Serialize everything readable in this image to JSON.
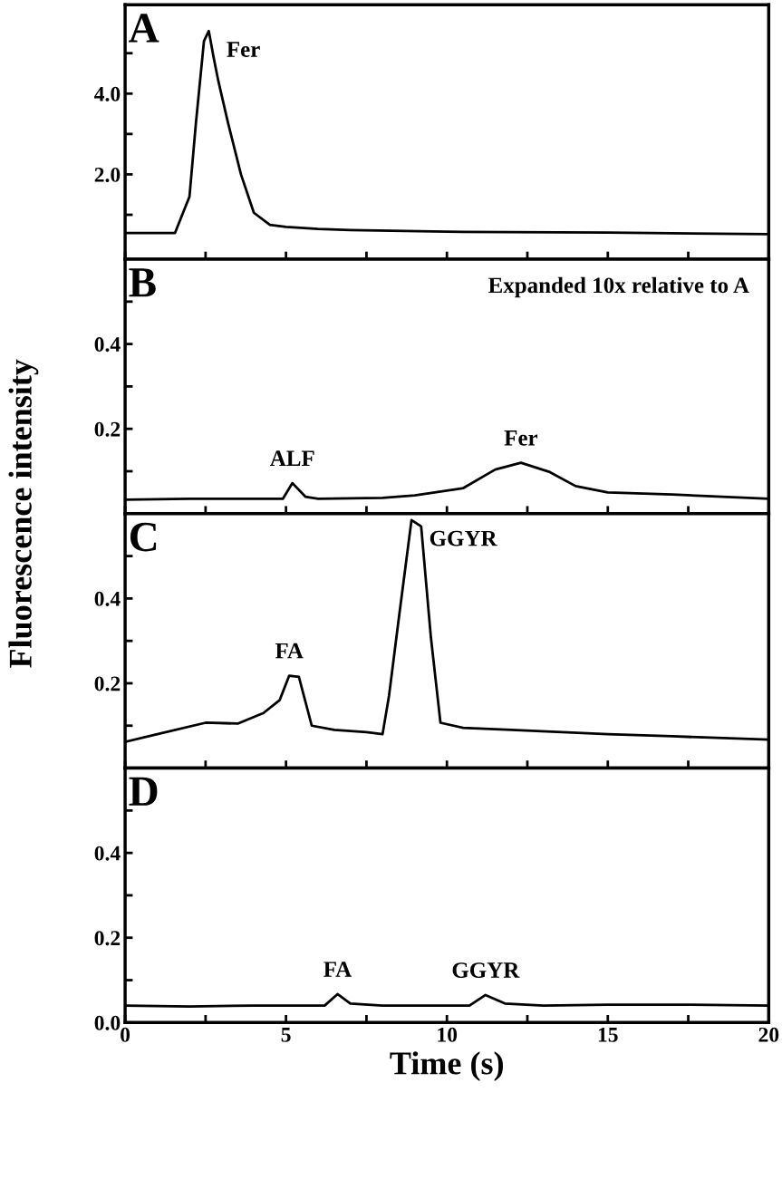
{
  "chart_data": [
    {
      "type": "line",
      "title": "A",
      "ylabel": "Fluorescence intensity",
      "tick_labels": "y",
      "xlim": [
        0,
        20
      ],
      "xticks": [
        {
          "value": 0,
          "label": null
        },
        {
          "value": 2.5,
          "label": null
        },
        {
          "value": 5,
          "label": null
        },
        {
          "value": 7.5,
          "label": null
        },
        {
          "value": 10,
          "label": null
        },
        {
          "value": 12.5,
          "label": null
        },
        {
          "value": 15,
          "label": null
        },
        {
          "value": 17.5,
          "label": null
        },
        {
          "value": 20,
          "label": null
        }
      ],
      "ylim": [
        -0.1,
        6.2
      ],
      "yticks": [
        {
          "value": 1,
          "label": null
        },
        {
          "value": 2,
          "label": "2.0"
        },
        {
          "value": 3,
          "label": null
        },
        {
          "value": 4,
          "label": "4.0"
        },
        {
          "value": 5,
          "label": null
        }
      ],
      "x": [
        0,
        1.55,
        1.8,
        2.0,
        2.2,
        2.45,
        2.6,
        2.75,
        2.9,
        3.2,
        3.6,
        4.0,
        4.5,
        5,
        6,
        7,
        10,
        15,
        20
      ],
      "series": [
        {
          "color": "#000000",
          "values": [
            0.55,
            0.55,
            1.05,
            1.45,
            3.27,
            5.3,
            5.55,
            4.9,
            4.3,
            3.27,
            2.0,
            1.05,
            0.75,
            0.7,
            0.65,
            0.62,
            0.58,
            0.56,
            0.52
          ]
        }
      ],
      "annotations": [
        {
          "text": "Fer",
          "x": 2.6,
          "y": 5.55
        }
      ]
    },
    {
      "type": "line",
      "title": "B",
      "tick_labels": "y",
      "xlim": [
        0,
        20
      ],
      "xticks": [
        {
          "value": 0,
          "label": null
        },
        {
          "value": 2.5,
          "label": null
        },
        {
          "value": 5,
          "label": null
        },
        {
          "value": 7.5,
          "label": null
        },
        {
          "value": 10,
          "label": null
        },
        {
          "value": 12.5,
          "label": null
        },
        {
          "value": 15,
          "label": null
        },
        {
          "value": 17.5,
          "label": null
        },
        {
          "value": 20,
          "label": null
        }
      ],
      "ylim": [
        0,
        0.6
      ],
      "x": [
        0,
        2,
        4,
        4.9,
        5.2,
        5.6,
        6,
        8,
        9,
        10.5,
        11.5,
        12.3,
        13.2,
        14,
        15,
        17,
        20
      ],
      "yticks": [
        {
          "value": 0.1,
          "label": null
        },
        {
          "value": 0.2,
          "label": "0.2"
        },
        {
          "value": 0.3,
          "label": null
        },
        {
          "value": 0.4,
          "label": "0.4"
        },
        {
          "value": 0.5,
          "label": null
        }
      ],
      "series": [
        {
          "color": "#000000",
          "values": [
            0.033,
            0.035,
            0.035,
            0.035,
            0.072,
            0.04,
            0.035,
            0.037,
            0.043,
            0.06,
            0.104,
            0.12,
            0.098,
            0.065,
            0.05,
            0.045,
            0.035
          ]
        }
      ],
      "annotations": [
        "Expanded 10x relative to A",
        {
          "text": "ALF",
          "x": 5.2,
          "y": 0.072
        },
        {
          "text": "Fer",
          "x": 12.3,
          "y": 0.12
        }
      ]
    },
    {
      "type": "line",
      "title": "C",
      "tick_labels": "y",
      "xlim": [
        0,
        20
      ],
      "xticks": [
        {
          "value": 0,
          "label": null
        },
        {
          "value": 2.5,
          "label": null
        },
        {
          "value": 5,
          "label": null
        },
        {
          "value": 7.5,
          "label": null
        },
        {
          "value": 10,
          "label": null
        },
        {
          "value": 12.5,
          "label": null
        },
        {
          "value": 15,
          "label": null
        },
        {
          "value": 17.5,
          "label": null
        },
        {
          "value": 20,
          "label": null
        }
      ],
      "ylim": [
        0,
        0.6
      ],
      "yticks": [
        {
          "value": 0.1,
          "label": null
        },
        {
          "value": 0.2,
          "label": "0.2"
        },
        {
          "value": 0.3,
          "label": null
        },
        {
          "value": 0.4,
          "label": "0.4"
        },
        {
          "value": 0.5,
          "label": null
        }
      ],
      "x": [
        0,
        1,
        2.5,
        3.5,
        4.3,
        4.8,
        5.1,
        5.4,
        5.8,
        6.5,
        7.5,
        8.0,
        8.2,
        8.5,
        8.9,
        9.2,
        9.5,
        9.8,
        10.5,
        12,
        15,
        17,
        20
      ],
      "series": [
        {
          "color": "#000000",
          "values": [
            0.062,
            0.08,
            0.107,
            0.105,
            0.13,
            0.16,
            0.218,
            0.215,
            0.1,
            0.09,
            0.085,
            0.08,
            0.17,
            0.35,
            0.585,
            0.57,
            0.31,
            0.107,
            0.095,
            0.09,
            0.08,
            0.075,
            0.067
          ]
        }
      ],
      "annotations": [
        {
          "text": "FA",
          "x": 5.1,
          "y": 0.218
        },
        {
          "text": "GGYR",
          "x": 8.9,
          "y": 0.585
        }
      ]
    },
    {
      "type": "line",
      "title": "D",
      "xlabel": "Time (s)",
      "xlim": [
        0,
        20
      ],
      "xticks": [
        0,
        {
          "value": 2.5,
          "label": null
        },
        5,
        {
          "value": 7.5,
          "label": null
        },
        10,
        {
          "value": 12.5,
          "label": null
        },
        15,
        {
          "value": 17.5,
          "label": null
        },
        20
      ],
      "ylim": [
        0,
        0.6
      ],
      "yticks": [
        {
          "value": 0,
          "label": "0.0"
        },
        {
          "value": 0.1,
          "label": null
        },
        {
          "value": 0.2,
          "label": "0.2"
        },
        {
          "value": 0.3,
          "label": null
        },
        {
          "value": 0.4,
          "label": "0.4"
        },
        {
          "value": 0.5,
          "label": null
        }
      ],
      "x": [
        0,
        2,
        4,
        6.2,
        6.6,
        7,
        8,
        10.7,
        11.2,
        11.8,
        13,
        15,
        17.5,
        20
      ],
      "series": [
        {
          "color": "#000000",
          "values": [
            0.04,
            0.038,
            0.04,
            0.04,
            0.067,
            0.045,
            0.04,
            0.04,
            0.065,
            0.045,
            0.04,
            0.042,
            0.042,
            0.04
          ]
        }
      ],
      "annotations": [
        {
          "text": "FA",
          "x": 6.6,
          "y": 0.067
        },
        {
          "text": "GGYR",
          "x": 11.2,
          "y": 0.065
        }
      ]
    }
  ]
}
